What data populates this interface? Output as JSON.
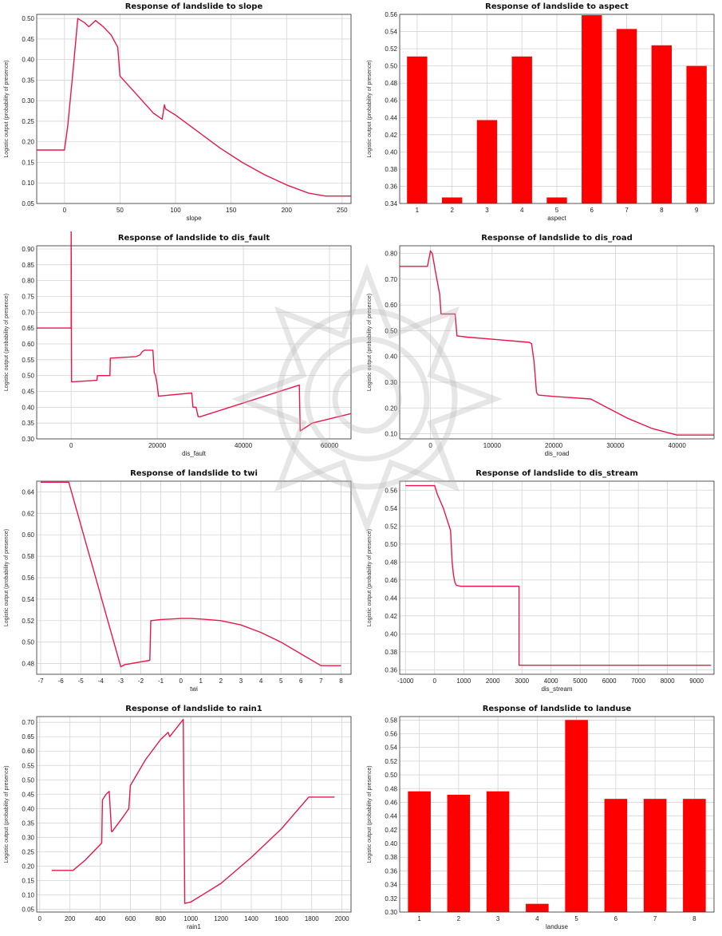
{
  "chart_data": [
    {
      "type": "line",
      "title": "Response of landslide to slope",
      "xlabel": "slope",
      "ylabel": "Logistic output (probability of presence)",
      "xlim": [
        -25,
        258
      ],
      "ylim": [
        0.05,
        0.51
      ],
      "xticks": [
        0,
        50,
        100,
        150,
        200,
        250
      ],
      "yticks": [
        0.05,
        0.1,
        0.15,
        0.2,
        0.25,
        0.3,
        0.35,
        0.4,
        0.45,
        0.5
      ],
      "x": [
        -25,
        0,
        3,
        8,
        12,
        18,
        22,
        28,
        35,
        42,
        46,
        48,
        50,
        60,
        70,
        80,
        88,
        90,
        91,
        100,
        120,
        140,
        160,
        180,
        200,
        220,
        235,
        258
      ],
      "y": [
        0.18,
        0.18,
        0.24,
        0.38,
        0.5,
        0.49,
        0.48,
        0.495,
        0.48,
        0.46,
        0.44,
        0.43,
        0.36,
        0.33,
        0.3,
        0.27,
        0.255,
        0.29,
        0.28,
        0.265,
        0.225,
        0.185,
        0.15,
        0.12,
        0.095,
        0.075,
        0.068,
        0.068
      ],
      "grid": true
    },
    {
      "type": "bar",
      "title": "Response of landslide to aspect",
      "xlabel": "aspect",
      "ylabel": "Logistic output (probability of presence)",
      "categories": [
        "1",
        "2",
        "3",
        "4",
        "5",
        "6",
        "7",
        "8",
        "9"
      ],
      "values": [
        0.511,
        0.347,
        0.437,
        0.511,
        0.347,
        0.559,
        0.543,
        0.524,
        0.5
      ],
      "ylim": [
        0.34,
        0.56
      ],
      "yticks": [
        0.34,
        0.36,
        0.38,
        0.4,
        0.42,
        0.44,
        0.46,
        0.48,
        0.5,
        0.52,
        0.54,
        0.56
      ],
      "grid": true
    },
    {
      "type": "line",
      "title": "Response of landslide to dis_fault",
      "xlabel": "dis_fault",
      "ylabel": "Logistic output (probability of presence)",
      "xlim": [
        -8000,
        65000
      ],
      "ylim": [
        0.3,
        0.91
      ],
      "xticks": [
        0,
        20000,
        40000,
        60000
      ],
      "yticks": [
        0.3,
        0.35,
        0.4,
        0.45,
        0.5,
        0.55,
        0.6,
        0.65,
        0.7,
        0.75,
        0.8,
        0.85,
        0.9
      ],
      "x": [
        -8000,
        0,
        0,
        100,
        200,
        6000,
        6100,
        9000,
        9100,
        15000,
        16000,
        16500,
        17000,
        19000,
        19300,
        19600,
        20000,
        20300,
        28000,
        28300,
        29000,
        29500,
        30000,
        53000,
        53200,
        56000,
        65000
      ],
      "y": [
        0.65,
        0.65,
        0.98,
        0.48,
        0.48,
        0.485,
        0.5,
        0.5,
        0.555,
        0.56,
        0.565,
        0.575,
        0.58,
        0.58,
        0.51,
        0.5,
        0.47,
        0.435,
        0.445,
        0.4,
        0.4,
        0.37,
        0.37,
        0.47,
        0.325,
        0.35,
        0.38
      ],
      "grid": true
    },
    {
      "type": "line",
      "title": "Response of landslide to dis_road",
      "xlabel": "dis_road",
      "ylabel": "Logistic output (probability of presence)",
      "xlim": [
        -5000,
        46000
      ],
      "ylim": [
        0.08,
        0.83
      ],
      "xticks": [
        0,
        10000,
        20000,
        30000,
        40000
      ],
      "yticks": [
        0.1,
        0.2,
        0.3,
        0.4,
        0.5,
        0.6,
        0.7,
        0.8
      ],
      "x": [
        -5000,
        -500,
        0,
        300,
        800,
        1500,
        1700,
        4000,
        4300,
        6000,
        16000,
        16400,
        16800,
        17200,
        17500,
        20000,
        26000,
        28000,
        32000,
        36000,
        40000,
        46000
      ],
      "y": [
        0.75,
        0.75,
        0.81,
        0.8,
        0.73,
        0.64,
        0.565,
        0.565,
        0.48,
        0.475,
        0.455,
        0.45,
        0.38,
        0.26,
        0.25,
        0.245,
        0.235,
        0.21,
        0.16,
        0.12,
        0.095,
        0.095
      ],
      "grid": true
    },
    {
      "type": "line",
      "title": "Response of landslide to twi",
      "xlabel": "twi",
      "ylabel": "Logistic output (probability of presence)",
      "xlim": [
        -7.2,
        8.5
      ],
      "ylim": [
        0.47,
        0.65
      ],
      "xticks": [
        -7,
        -6,
        -5,
        -4,
        -3,
        -2,
        -1,
        0,
        1,
        2,
        3,
        4,
        5,
        6,
        7,
        8
      ],
      "yticks": [
        0.48,
        0.5,
        0.52,
        0.54,
        0.56,
        0.58,
        0.6,
        0.62,
        0.64
      ],
      "x": [
        -7.0,
        -5.6,
        -3.0,
        -2.8,
        -1.55,
        -1.5,
        -1.0,
        -0.5,
        0.0,
        0.5,
        1.0,
        2.0,
        3.0,
        4.0,
        5.0,
        6.0,
        7.0,
        8.0
      ],
      "y": [
        0.649,
        0.649,
        0.477,
        0.479,
        0.483,
        0.52,
        0.521,
        0.5215,
        0.522,
        0.522,
        0.5215,
        0.52,
        0.516,
        0.509,
        0.5,
        0.489,
        0.478,
        0.478
      ],
      "grid": true
    },
    {
      "type": "line",
      "title": "Response of landslide to dis_stream",
      "xlabel": "dis_stream",
      "ylabel": "Logistic output (probability of presence)",
      "xlim": [
        -1200,
        9600
      ],
      "ylim": [
        0.355,
        0.57
      ],
      "xticks": [
        -1000,
        0,
        1000,
        2000,
        3000,
        4000,
        5000,
        6000,
        7000,
        8000,
        9000
      ],
      "yticks": [
        0.36,
        0.38,
        0.4,
        0.42,
        0.44,
        0.46,
        0.48,
        0.5,
        0.52,
        0.54,
        0.56
      ],
      "x": [
        -1000,
        0,
        100,
        300,
        550,
        600,
        650,
        700,
        750,
        900,
        2900,
        2900,
        3000,
        9500
      ],
      "y": [
        0.565,
        0.565,
        0.555,
        0.54,
        0.515,
        0.48,
        0.465,
        0.457,
        0.454,
        0.453,
        0.453,
        0.365,
        0.365,
        0.365
      ],
      "grid": true
    },
    {
      "type": "line",
      "title": "Response of landslide to rain1",
      "xlabel": "rain1",
      "ylabel": "Logistic output (probability of presence)",
      "xlim": [
        -20,
        2060
      ],
      "ylim": [
        0.04,
        0.72
      ],
      "xticks": [
        0,
        200,
        400,
        600,
        800,
        1000,
        1200,
        1400,
        1600,
        1800,
        2000
      ],
      "yticks": [
        0.05,
        0.1,
        0.15,
        0.2,
        0.25,
        0.3,
        0.35,
        0.4,
        0.45,
        0.5,
        0.55,
        0.6,
        0.65,
        0.7
      ],
      "x": [
        80,
        220,
        300,
        410,
        415,
        440,
        460,
        475,
        480,
        550,
        590,
        600,
        700,
        800,
        850,
        860,
        950,
        960,
        1000,
        1200,
        1400,
        1600,
        1780,
        1950
      ],
      "y": [
        0.185,
        0.185,
        0.22,
        0.28,
        0.43,
        0.45,
        0.46,
        0.32,
        0.32,
        0.37,
        0.4,
        0.48,
        0.57,
        0.64,
        0.665,
        0.65,
        0.71,
        0.07,
        0.075,
        0.14,
        0.23,
        0.33,
        0.44,
        0.44
      ],
      "grid": true
    },
    {
      "type": "bar",
      "title": "Response of landslide to landuse",
      "xlabel": "landuse",
      "ylabel": "Logistic output (probability of presence)",
      "categories": [
        "1",
        "2",
        "3",
        "4",
        "5",
        "6",
        "7",
        "8"
      ],
      "values": [
        0.476,
        0.471,
        0.476,
        0.312,
        0.58,
        0.465,
        0.465,
        0.465
      ],
      "ylim": [
        0.3,
        0.585
      ],
      "yticks": [
        0.3,
        0.32,
        0.34,
        0.36,
        0.38,
        0.4,
        0.42,
        0.44,
        0.46,
        0.48,
        0.5,
        0.52,
        0.54,
        0.56,
        0.58
      ],
      "grid": true
    }
  ]
}
